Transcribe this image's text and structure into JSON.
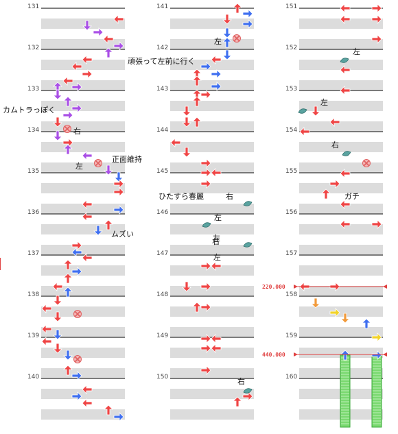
{
  "columns": [
    {
      "measures": [
        "131",
        "132",
        "133",
        "134",
        "135",
        "136",
        "137",
        "138",
        "139",
        "140"
      ]
    },
    {
      "measures": [
        "141",
        "142",
        "143",
        "144",
        "145",
        "146",
        "147",
        "148",
        "149",
        "150"
      ]
    },
    {
      "measures": [
        "151",
        "152",
        "153",
        "154",
        "155",
        "156",
        "157",
        "158",
        "159",
        "160"
      ]
    }
  ],
  "comments": [
    {
      "text": "頑張って左前に行く"
    },
    {
      "text": "カムトラっぽく"
    },
    {
      "text": "正面維持"
    },
    {
      "text": "ひたすら春麗"
    },
    {
      "text": "ムズい"
    },
    {
      "text": "ガチ"
    },
    {
      "text": "右"
    },
    {
      "text": "左"
    },
    {
      "text": "左"
    },
    {
      "text": "右"
    },
    {
      "text": "左"
    },
    {
      "text": "左"
    },
    {
      "text": "右"
    },
    {
      "text": "左"
    },
    {
      "text": "左"
    },
    {
      "text": "右"
    },
    {
      "text": "左"
    },
    {
      "text": "右"
    }
  ],
  "bpm_changes": [
    {
      "value": "220.000"
    },
    {
      "value": "440.000"
    }
  ],
  "colors": {
    "note_red": "#ef4545",
    "note_blue": "#3f6ff0",
    "note_purple": "#a94fe6",
    "note_orange": "#f29a3a",
    "note_yellow": "#f2d32a",
    "mine": "#e06060",
    "bpm_line": "#e04040",
    "freeze": "#7ad970",
    "stripe": "#dcdcdc",
    "measure_line": "#555555"
  },
  "legend": {
    "note_types": [
      "arrow",
      "jump",
      "mine",
      "freeze",
      "body-turn-marker"
    ]
  }
}
